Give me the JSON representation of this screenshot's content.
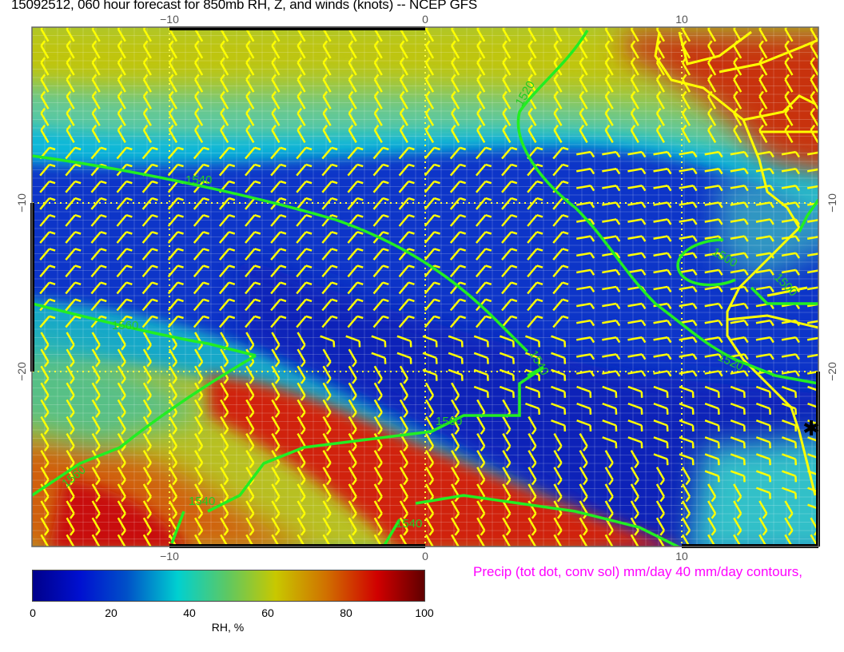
{
  "title": "15092512, 060 hour forecast for 850mb RH, Z, and winds (knots)  -- NCEP GFS",
  "axes": {
    "x_ticks": [
      "−10",
      "0",
      "10"
    ],
    "y_ticks": [
      "−10",
      "−20"
    ]
  },
  "contour_labels": [
    "1520",
    "1540",
    "1560",
    "1560",
    "1560",
    "1500",
    "1500",
    "1520",
    "1540",
    "1540",
    "1540"
  ],
  "colorbar": {
    "ticks": [
      "0",
      "20",
      "40",
      "60",
      "80",
      "100"
    ],
    "label": "RH, %",
    "range": [
      0,
      100
    ],
    "colors": [
      "#00008a",
      "#0010d0",
      "#00d0d0",
      "#c8c800",
      "#d00000",
      "#600000"
    ]
  },
  "precip_note": "Precip (tot dot, conv sol) mm/day 40 mm/day contours,",
  "colors": {
    "contour": "#22ee22",
    "wind_barb": "#ffff00",
    "coastline": "#ffff00",
    "precip_text": "#ff00ff"
  }
}
